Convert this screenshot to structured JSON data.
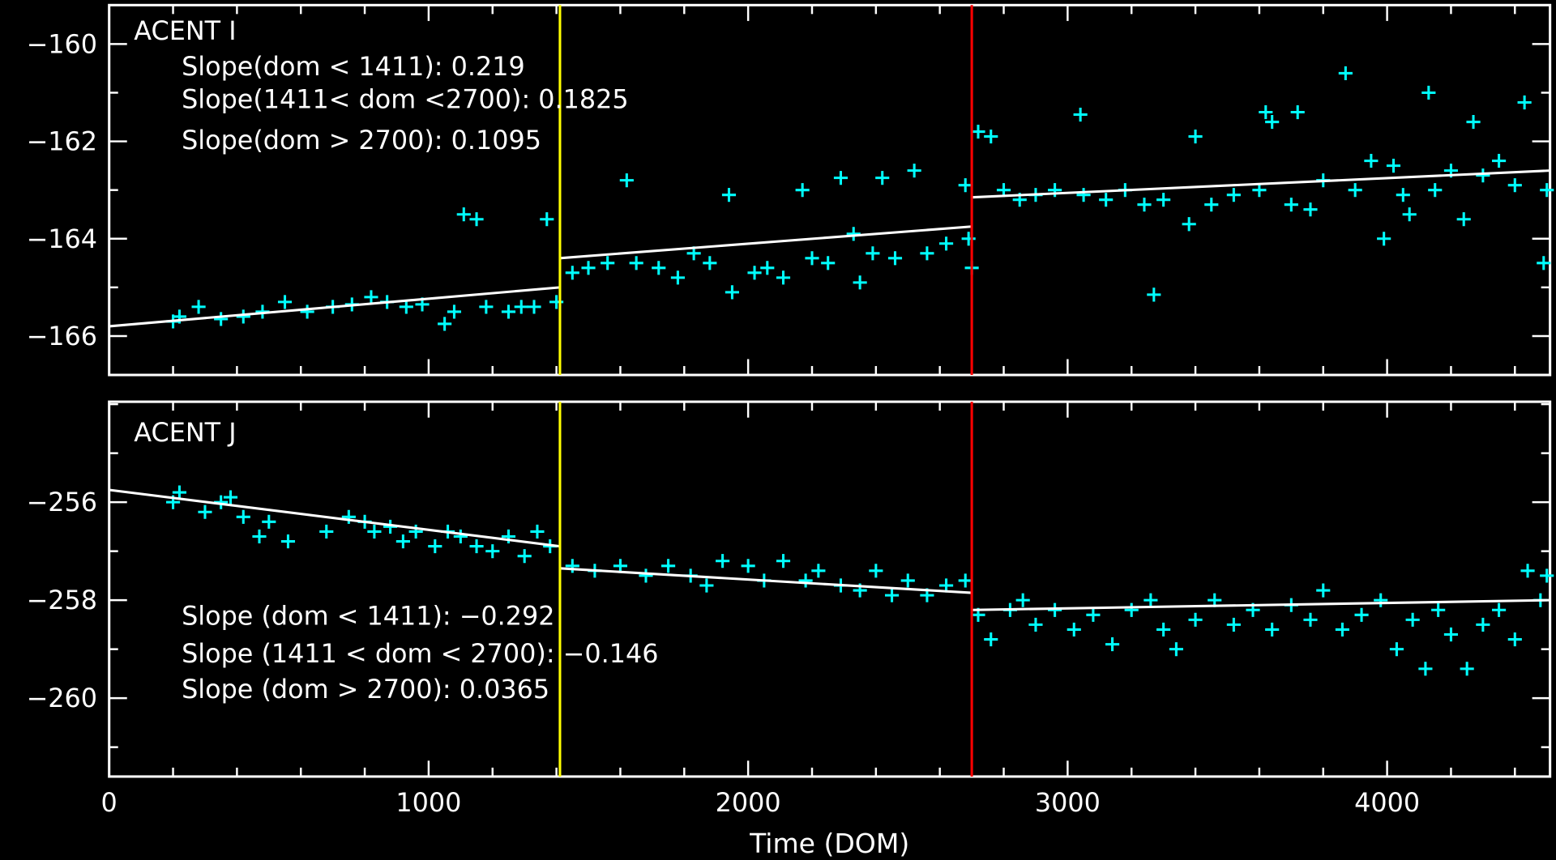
{
  "chart_data": [
    {
      "type": "scatter",
      "title": "ACENT I",
      "xlabel": "Time (DOM)",
      "ylabel": "",
      "xlim": [
        0,
        4510
      ],
      "ylim": [
        -166.8,
        -159.2
      ],
      "xticks": [
        "0",
        "1000",
        "2000",
        "3000",
        "4000"
      ],
      "yticks": [
        -160,
        -162,
        -164,
        -166
      ],
      "ytick_labels": [
        "−160",
        "−162",
        "−164",
        "−166"
      ],
      "annotations": [
        "Slope(dom < 1411): 0.219",
        "Slope(1411< dom <2700): 0.1825",
        "Slope(dom > 2700): 0.1095"
      ],
      "vlines": [
        {
          "x": 1411,
          "color": "#ffff00"
        },
        {
          "x": 2700,
          "color": "#ff0000"
        }
      ],
      "fit_segments": [
        [
          [
            0,
            -165.8
          ],
          [
            1411,
            -165.0
          ]
        ],
        [
          [
            1411,
            -164.4
          ],
          [
            2700,
            -163.75
          ]
        ],
        [
          [
            2700,
            -163.15
          ],
          [
            4510,
            -162.6
          ]
        ]
      ],
      "marker_color": "#00ffff",
      "points": [
        [
          200,
          -165.7
        ],
        [
          220,
          -165.6
        ],
        [
          280,
          -165.4
        ],
        [
          350,
          -165.65
        ],
        [
          420,
          -165.6
        ],
        [
          480,
          -165.5
        ],
        [
          550,
          -165.3
        ],
        [
          620,
          -165.5
        ],
        [
          700,
          -165.4
        ],
        [
          760,
          -165.35
        ],
        [
          820,
          -165.2
        ],
        [
          870,
          -165.3
        ],
        [
          930,
          -165.4
        ],
        [
          980,
          -165.35
        ],
        [
          1050,
          -165.75
        ],
        [
          1080,
          -165.5
        ],
        [
          1110,
          -163.5
        ],
        [
          1150,
          -163.6
        ],
        [
          1180,
          -165.4
        ],
        [
          1250,
          -165.5
        ],
        [
          1290,
          -165.4
        ],
        [
          1330,
          -165.4
        ],
        [
          1370,
          -163.6
        ],
        [
          1400,
          -165.3
        ],
        [
          1450,
          -164.7
        ],
        [
          1500,
          -164.6
        ],
        [
          1560,
          -164.5
        ],
        [
          1620,
          -162.8
        ],
        [
          1650,
          -164.5
        ],
        [
          1720,
          -164.6
        ],
        [
          1780,
          -164.8
        ],
        [
          1830,
          -164.3
        ],
        [
          1880,
          -164.5
        ],
        [
          1940,
          -163.1
        ],
        [
          1950,
          -165.1
        ],
        [
          2020,
          -164.7
        ],
        [
          2060,
          -164.6
        ],
        [
          2110,
          -164.8
        ],
        [
          2170,
          -163.0
        ],
        [
          2200,
          -164.4
        ],
        [
          2250,
          -164.5
        ],
        [
          2290,
          -162.75
        ],
        [
          2330,
          -163.9
        ],
        [
          2350,
          -164.9
        ],
        [
          2390,
          -164.3
        ],
        [
          2420,
          -162.75
        ],
        [
          2460,
          -164.4
        ],
        [
          2520,
          -162.6
        ],
        [
          2560,
          -164.3
        ],
        [
          2620,
          -164.1
        ],
        [
          2680,
          -162.9
        ],
        [
          2690,
          -164.0
        ],
        [
          2700,
          -164.6
        ],
        [
          2720,
          -161.8
        ],
        [
          2760,
          -161.9
        ],
        [
          2800,
          -163.0
        ],
        [
          2850,
          -163.2
        ],
        [
          2900,
          -163.1
        ],
        [
          2960,
          -163.0
        ],
        [
          3040,
          -161.45
        ],
        [
          3050,
          -163.1
        ],
        [
          3120,
          -163.2
        ],
        [
          3180,
          -163.0
        ],
        [
          3240,
          -163.3
        ],
        [
          3270,
          -165.15
        ],
        [
          3300,
          -163.2
        ],
        [
          3380,
          -163.7
        ],
        [
          3400,
          -161.9
        ],
        [
          3450,
          -163.3
        ],
        [
          3520,
          -163.1
        ],
        [
          3600,
          -163.0
        ],
        [
          3620,
          -161.4
        ],
        [
          3640,
          -161.6
        ],
        [
          3700,
          -163.3
        ],
        [
          3720,
          -161.4
        ],
        [
          3760,
          -163.4
        ],
        [
          3800,
          -162.8
        ],
        [
          3870,
          -160.6
        ],
        [
          3900,
          -163.0
        ],
        [
          3950,
          -162.4
        ],
        [
          3990,
          -164.0
        ],
        [
          4020,
          -162.5
        ],
        [
          4050,
          -163.1
        ],
        [
          4070,
          -163.5
        ],
        [
          4130,
          -161.0
        ],
        [
          4150,
          -163.0
        ],
        [
          4200,
          -162.6
        ],
        [
          4240,
          -163.6
        ],
        [
          4270,
          -161.6
        ],
        [
          4300,
          -162.7
        ],
        [
          4350,
          -162.4
        ],
        [
          4400,
          -162.9
        ],
        [
          4430,
          -161.2
        ],
        [
          4490,
          -164.5
        ],
        [
          4500,
          -163.0
        ]
      ]
    },
    {
      "type": "scatter",
      "title": "ACENT J",
      "xlabel": "Time (DOM)",
      "ylabel": "",
      "xlim": [
        0,
        4510
      ],
      "ylim": [
        -261.6,
        -253.95
      ],
      "xticks": [
        "0",
        "1000",
        "2000",
        "3000",
        "4000"
      ],
      "yticks": [
        -256,
        -258,
        -260
      ],
      "ytick_labels": [
        "−256",
        "−258",
        "−260"
      ],
      "annotations": [
        "Slope (dom < 1411): −0.292",
        "Slope (1411 < dom < 2700): −0.146",
        "Slope (dom > 2700): 0.0365"
      ],
      "vlines": [
        {
          "x": 1411,
          "color": "#ffff00"
        },
        {
          "x": 2700,
          "color": "#ff0000"
        }
      ],
      "fit_segments": [
        [
          [
            0,
            -255.75
          ],
          [
            1411,
            -256.9
          ]
        ],
        [
          [
            1411,
            -257.35
          ],
          [
            2700,
            -257.85
          ]
        ],
        [
          [
            2700,
            -258.2
          ],
          [
            4510,
            -258.0
          ]
        ]
      ],
      "marker_color": "#00ffff",
      "points": [
        [
          200,
          -256.0
        ],
        [
          220,
          -255.8
        ],
        [
          300,
          -256.2
        ],
        [
          350,
          -256.0
        ],
        [
          380,
          -255.9
        ],
        [
          420,
          -256.3
        ],
        [
          470,
          -256.7
        ],
        [
          500,
          -256.4
        ],
        [
          560,
          -256.8
        ],
        [
          680,
          -256.6
        ],
        [
          750,
          -256.3
        ],
        [
          800,
          -256.4
        ],
        [
          830,
          -256.6
        ],
        [
          880,
          -256.5
        ],
        [
          920,
          -256.8
        ],
        [
          960,
          -256.6
        ],
        [
          1020,
          -256.9
        ],
        [
          1060,
          -256.6
        ],
        [
          1100,
          -256.7
        ],
        [
          1150,
          -256.9
        ],
        [
          1200,
          -257.0
        ],
        [
          1250,
          -256.7
        ],
        [
          1300,
          -257.1
        ],
        [
          1340,
          -256.6
        ],
        [
          1380,
          -256.9
        ],
        [
          1450,
          -257.3
        ],
        [
          1520,
          -257.4
        ],
        [
          1600,
          -257.3
        ],
        [
          1680,
          -257.5
        ],
        [
          1750,
          -257.3
        ],
        [
          1820,
          -257.5
        ],
        [
          1870,
          -257.7
        ],
        [
          1920,
          -257.2
        ],
        [
          2000,
          -257.3
        ],
        [
          2050,
          -257.6
        ],
        [
          2110,
          -257.2
        ],
        [
          2180,
          -257.6
        ],
        [
          2220,
          -257.4
        ],
        [
          2290,
          -257.7
        ],
        [
          2350,
          -257.8
        ],
        [
          2400,
          -257.4
        ],
        [
          2450,
          -257.9
        ],
        [
          2500,
          -257.6
        ],
        [
          2560,
          -257.9
        ],
        [
          2620,
          -257.7
        ],
        [
          2680,
          -257.6
        ],
        [
          2720,
          -258.3
        ],
        [
          2760,
          -258.8
        ],
        [
          2820,
          -258.2
        ],
        [
          2860,
          -258.0
        ],
        [
          2900,
          -258.5
        ],
        [
          2960,
          -258.2
        ],
        [
          3020,
          -258.6
        ],
        [
          3080,
          -258.3
        ],
        [
          3140,
          -258.9
        ],
        [
          3200,
          -258.2
        ],
        [
          3260,
          -258.0
        ],
        [
          3300,
          -258.6
        ],
        [
          3340,
          -259.0
        ],
        [
          3400,
          -258.4
        ],
        [
          3460,
          -258.0
        ],
        [
          3520,
          -258.5
        ],
        [
          3580,
          -258.2
        ],
        [
          3640,
          -258.6
        ],
        [
          3700,
          -258.1
        ],
        [
          3760,
          -258.4
        ],
        [
          3800,
          -257.8
        ],
        [
          3860,
          -258.6
        ],
        [
          3920,
          -258.3
        ],
        [
          3980,
          -258.0
        ],
        [
          4030,
          -259.0
        ],
        [
          4080,
          -258.4
        ],
        [
          4120,
          -259.4
        ],
        [
          4160,
          -258.2
        ],
        [
          4200,
          -258.7
        ],
        [
          4250,
          -259.4
        ],
        [
          4300,
          -258.5
        ],
        [
          4350,
          -258.2
        ],
        [
          4400,
          -258.8
        ],
        [
          4440,
          -257.4
        ],
        [
          4480,
          -258.0
        ],
        [
          4500,
          -257.5
        ]
      ]
    }
  ],
  "x_axis_label": "Time (DOM)"
}
